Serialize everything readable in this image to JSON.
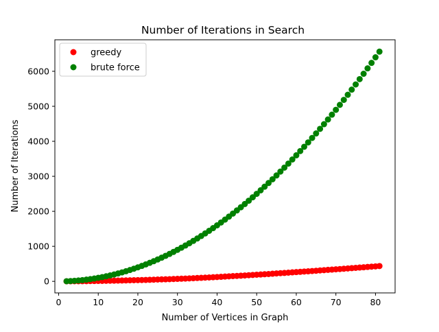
{
  "chart_data": {
    "type": "scatter",
    "title": "Number of Iterations in Search",
    "xlabel": "Number of Vertices in Graph",
    "ylabel": "Number of Iterations",
    "xlim": [
      -0.95,
      84.95
    ],
    "ylim": [
      -330,
      6900
    ],
    "xticks": [
      0,
      10,
      20,
      30,
      40,
      50,
      60,
      70,
      80
    ],
    "yticks": [
      0,
      1000,
      2000,
      3000,
      4000,
      5000,
      6000
    ],
    "x": [
      2,
      3,
      4,
      5,
      6,
      7,
      8,
      9,
      10,
      11,
      12,
      13,
      14,
      15,
      16,
      17,
      18,
      19,
      20,
      21,
      22,
      23,
      24,
      25,
      26,
      27,
      28,
      29,
      30,
      31,
      32,
      33,
      34,
      35,
      36,
      37,
      38,
      39,
      40,
      41,
      42,
      43,
      44,
      45,
      46,
      47,
      48,
      49,
      50,
      51,
      52,
      53,
      54,
      55,
      56,
      57,
      58,
      59,
      60,
      61,
      62,
      63,
      64,
      65,
      66,
      67,
      68,
      69,
      70,
      71,
      72,
      73,
      74,
      75,
      76,
      77,
      78,
      79,
      80,
      81
    ],
    "grid": false,
    "legend_position": "upper-left",
    "series": [
      {
        "name": "greedy",
        "color": "#ff0000",
        "values": [
          1,
          2,
          3,
          4,
          5,
          6,
          8,
          10,
          12,
          14,
          16,
          18,
          20,
          22,
          24,
          27,
          30,
          33,
          36,
          38,
          41,
          44,
          48,
          52,
          56,
          59,
          63,
          67,
          71,
          76,
          80,
          84,
          89,
          95,
          100,
          106,
          112,
          118,
          124,
          130,
          137,
          143,
          150,
          155,
          162,
          168,
          175,
          182,
          190,
          196,
          203,
          210,
          218,
          226,
          234,
          240,
          248,
          257,
          265,
          272,
          280,
          287,
          295,
          303,
          312,
          320,
          328,
          336,
          344,
          352,
          360,
          368,
          377,
          386,
          394,
          402,
          411,
          420,
          428,
          437
        ]
      },
      {
        "name": "brute force",
        "color": "#008000",
        "values": [
          4,
          9,
          16,
          25,
          36,
          49,
          64,
          81,
          100,
          121,
          144,
          169,
          196,
          225,
          256,
          289,
          324,
          361,
          400,
          441,
          484,
          529,
          576,
          625,
          676,
          729,
          784,
          841,
          900,
          961,
          1024,
          1089,
          1156,
          1225,
          1296,
          1369,
          1444,
          1521,
          1600,
          1681,
          1764,
          1849,
          1936,
          2025,
          2116,
          2209,
          2304,
          2401,
          2500,
          2601,
          2704,
          2809,
          2916,
          3025,
          3136,
          3249,
          3364,
          3481,
          3600,
          3721,
          3844,
          3969,
          4096,
          4225,
          4356,
          4489,
          4624,
          4761,
          4900,
          5041,
          5184,
          5329,
          5476,
          5625,
          5776,
          5929,
          6084,
          6241,
          6400,
          6561
        ]
      }
    ]
  }
}
